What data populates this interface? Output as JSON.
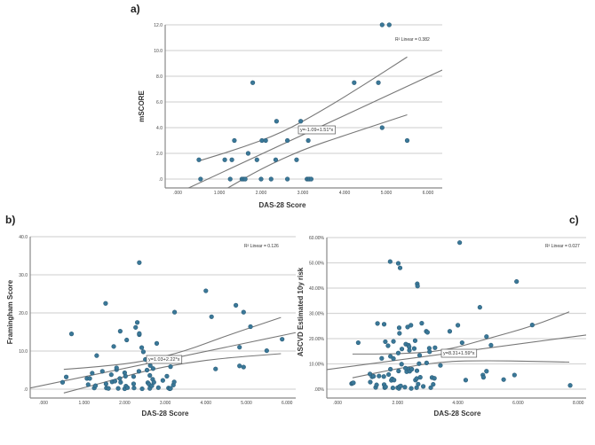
{
  "chart_data": [
    {
      "id": "a",
      "panel_label": "a)",
      "type": "scatter",
      "xlabel": "DAS-28 Score",
      "ylabel": "mSCORE",
      "xlim": [
        -0.2,
        6.3
      ],
      "ylim": [
        -0.7,
        12.0
      ],
      "xticks": [
        0,
        1,
        2,
        3,
        4,
        5,
        6
      ],
      "xtick_labels": [
        ".000",
        "1.000",
        "2.000",
        "3.000",
        "4.000",
        "5.000",
        "6.000"
      ],
      "yticks": [
        0,
        2,
        4,
        6,
        8,
        10,
        12
      ],
      "ytick_labels": [
        ".0",
        "2.0",
        "4.0",
        "6.0",
        "8.0",
        "10.0",
        "12.0"
      ],
      "grid": true,
      "r2_label": "R² Linear = 0.382",
      "equation_label": "y=-1.09+1.51*x",
      "fit": {
        "intercept": -1.09,
        "slope": 1.51
      },
      "ci_upper": [
        [
          0.5,
          1.4
        ],
        [
          1.5,
          2.4
        ],
        [
          2.5,
          3.6
        ],
        [
          3.5,
          5.4
        ],
        [
          4.5,
          7.4
        ],
        [
          5.5,
          9.5
        ]
      ],
      "ci_lower": [
        [
          1.2,
          -0.7
        ],
        [
          2.0,
          0.8
        ],
        [
          3.0,
          2.3
        ],
        [
          4.0,
          3.4
        ],
        [
          5.5,
          5.0
        ]
      ],
      "points": [
        [
          0.51,
          1.5
        ],
        [
          0.55,
          0
        ],
        [
          1.13,
          1.5
        ],
        [
          1.26,
          0
        ],
        [
          1.3,
          1.5
        ],
        [
          1.36,
          3.0
        ],
        [
          1.54,
          0
        ],
        [
          1.58,
          0
        ],
        [
          1.62,
          0
        ],
        [
          1.69,
          2.0
        ],
        [
          1.8,
          7.5
        ],
        [
          1.9,
          1.5
        ],
        [
          2.0,
          0
        ],
        [
          2.02,
          3.0
        ],
        [
          2.11,
          3.0
        ],
        [
          2.24,
          0
        ],
        [
          2.35,
          1.5
        ],
        [
          2.37,
          4.5
        ],
        [
          2.63,
          3.0
        ],
        [
          2.63,
          0
        ],
        [
          2.85,
          1.5
        ],
        [
          2.95,
          4.5
        ],
        [
          3.1,
          0
        ],
        [
          3.13,
          0
        ],
        [
          3.16,
          0
        ],
        [
          3.2,
          0
        ],
        [
          3.13,
          3.0
        ],
        [
          4.23,
          7.5
        ],
        [
          4.81,
          7.5
        ],
        [
          4.9,
          12.0
        ],
        [
          5.07,
          12.0
        ],
        [
          4.9,
          4.0
        ],
        [
          5.5,
          3.0
        ]
      ]
    },
    {
      "id": "b",
      "panel_label": "b)",
      "type": "scatter",
      "xlabel": "DAS-28 Score",
      "ylabel": "Framingham Score",
      "xlim": [
        -0.3,
        6.2
      ],
      "ylim": [
        -2.0,
        40.0
      ],
      "xticks": [
        0,
        1,
        2,
        3,
        4,
        5,
        6
      ],
      "xtick_labels": [
        ".000",
        "1.000",
        "2.000",
        "3.000",
        "4.000",
        "5.000",
        "6.000"
      ],
      "yticks": [
        0,
        10,
        20,
        30,
        40
      ],
      "ytick_labels": [
        ".0",
        "10.0",
        "20.0",
        "30.0",
        "40.0"
      ],
      "grid": true,
      "r2_label": "R² Linear = 0.126",
      "equation_label": "y=1.03+2.22*x",
      "fit": {
        "intercept": 1.03,
        "slope": 2.22
      },
      "ci_upper": [
        [
          0.5,
          5.2
        ],
        [
          1.5,
          6.0
        ],
        [
          2.5,
          7.3
        ],
        [
          3.5,
          10.0
        ],
        [
          4.5,
          14.0
        ],
        [
          5.85,
          18.8
        ]
      ],
      "ci_lower": [
        [
          0.5,
          -1.0
        ],
        [
          1.5,
          1.8
        ],
        [
          2.5,
          4.8
        ],
        [
          3.5,
          6.9
        ],
        [
          4.5,
          8.2
        ],
        [
          5.85,
          9.3
        ]
      ],
      "points": [
        [
          0.47,
          1.8
        ],
        [
          0.56,
          3.2
        ],
        [
          0.69,
          14.5
        ],
        [
          1.07,
          2.8
        ],
        [
          1.1,
          1.2
        ],
        [
          1.14,
          2.8
        ],
        [
          1.2,
          4.2
        ],
        [
          1.25,
          0.3
        ],
        [
          1.28,
          0.9
        ],
        [
          1.31,
          8.8
        ],
        [
          1.45,
          4.7
        ],
        [
          1.53,
          22.5
        ],
        [
          1.54,
          1.4
        ],
        [
          1.55,
          0.3
        ],
        [
          1.6,
          0.2
        ],
        [
          1.67,
          3.8
        ],
        [
          1.69,
          1.9
        ],
        [
          1.73,
          11.2
        ],
        [
          1.76,
          2.1
        ],
        [
          1.8,
          5.1
        ],
        [
          1.8,
          5.6
        ],
        [
          1.84,
          0.2
        ],
        [
          1.88,
          2.8
        ],
        [
          1.89,
          15.2
        ],
        [
          1.9,
          1.8
        ],
        [
          2.0,
          0.1
        ],
        [
          2.0,
          4.3
        ],
        [
          2.02,
          3.4
        ],
        [
          2.03,
          0.8
        ],
        [
          2.05,
          12.9
        ],
        [
          2.07,
          0.4
        ],
        [
          2.22,
          3.3
        ],
        [
          2.22,
          1.4
        ],
        [
          2.23,
          0.3
        ],
        [
          2.27,
          16.2
        ],
        [
          2.31,
          17.5
        ],
        [
          2.35,
          4.7
        ],
        [
          2.36,
          14.3
        ],
        [
          2.36,
          14.6
        ],
        [
          2.36,
          33.2
        ],
        [
          2.42,
          10.9
        ],
        [
          2.43,
          0.1
        ],
        [
          2.46,
          9.8
        ],
        [
          2.51,
          7.8
        ],
        [
          2.55,
          5.0
        ],
        [
          2.57,
          1.7
        ],
        [
          2.6,
          1.3
        ],
        [
          2.62,
          3.6
        ],
        [
          2.62,
          0.2
        ],
        [
          2.63,
          6.2
        ],
        [
          2.67,
          0.9
        ],
        [
          2.69,
          2.6
        ],
        [
          2.7,
          5.4
        ],
        [
          2.72,
          1.8
        ],
        [
          2.79,
          12.0
        ],
        [
          2.83,
          0.4
        ],
        [
          2.94,
          2.3
        ],
        [
          3.04,
          3.4
        ],
        [
          3.08,
          0.3
        ],
        [
          3.11,
          0.1
        ],
        [
          3.13,
          5.9
        ],
        [
          3.13,
          0.2
        ],
        [
          3.2,
          1.1
        ],
        [
          3.22,
          1.9
        ],
        [
          3.23,
          20.2
        ],
        [
          4.0,
          25.8
        ],
        [
          4.14,
          19.0
        ],
        [
          4.24,
          5.3
        ],
        [
          4.74,
          22.0
        ],
        [
          4.83,
          11.0
        ],
        [
          4.83,
          6.1
        ],
        [
          4.93,
          20.2
        ],
        [
          4.93,
          5.8
        ],
        [
          5.1,
          16.4
        ],
        [
          5.5,
          10.1
        ],
        [
          5.88,
          13.1
        ]
      ]
    },
    {
      "id": "c",
      "panel_label": "c)",
      "type": "scatter",
      "xlabel": "DAS-28 Score",
      "ylabel": "ASCVD Estimated 10y risk",
      "xlim": [
        -0.3,
        8.2
      ],
      "ylim": [
        -3.0,
        60.0
      ],
      "xticks": [
        0,
        2,
        4,
        6,
        8
      ],
      "xtick_labels": [
        ".000",
        "2.000",
        "4.000",
        "6.000",
        "8.000"
      ],
      "yticks": [
        0,
        10,
        20,
        30,
        40,
        50,
        60
      ],
      "ytick_labels": [
        ".00%",
        "10.00%",
        "20.00%",
        "30.00%",
        "40.00%",
        "50.00%",
        "60.00%"
      ],
      "grid": true,
      "r2_label": "R² Linear = 0.027",
      "equation_label": "y=8.31+1.59*x",
      "fit": {
        "intercept": 8.31,
        "slope": 1.59
      },
      "ci_upper": [
        [
          0.5,
          13.9
        ],
        [
          2.0,
          13.9
        ],
        [
          3.5,
          15.0
        ],
        [
          5.0,
          20.0
        ],
        [
          6.5,
          25.0
        ],
        [
          7.7,
          30.6
        ]
      ],
      "ci_lower": [
        [
          0.5,
          4.5
        ],
        [
          2.0,
          8.2
        ],
        [
          3.5,
          11.0
        ],
        [
          5.0,
          11.3
        ],
        [
          6.5,
          11.0
        ],
        [
          7.7,
          10.7
        ]
      ],
      "points": [
        [
          0.47,
          2.2
        ],
        [
          0.5,
          2.4
        ],
        [
          0.53,
          2.5
        ],
        [
          0.69,
          18.4
        ],
        [
          1.08,
          6.0
        ],
        [
          1.09,
          2.8
        ],
        [
          1.15,
          4.9
        ],
        [
          1.2,
          5.1
        ],
        [
          1.27,
          0.7
        ],
        [
          1.3,
          1.7
        ],
        [
          1.33,
          26.0
        ],
        [
          1.38,
          5.2
        ],
        [
          1.47,
          12.2
        ],
        [
          1.54,
          5.0
        ],
        [
          1.55,
          25.7
        ],
        [
          1.55,
          1.8
        ],
        [
          1.57,
          0.6
        ],
        [
          1.59,
          18.8
        ],
        [
          1.6,
          0.9
        ],
        [
          1.68,
          17.2
        ],
        [
          1.7,
          5.8
        ],
        [
          1.75,
          50.5
        ],
        [
          1.76,
          7.9
        ],
        [
          1.76,
          13.0
        ],
        [
          1.79,
          3.5
        ],
        [
          1.82,
          4.1
        ],
        [
          1.84,
          0.5
        ],
        [
          1.86,
          18.9
        ],
        [
          1.86,
          12.1
        ],
        [
          1.88,
          3.6
        ],
        [
          2.0,
          0.6
        ],
        [
          2.02,
          49.8
        ],
        [
          2.02,
          14.3
        ],
        [
          2.03,
          7.2
        ],
        [
          2.04,
          0.3
        ],
        [
          2.05,
          24.3
        ],
        [
          2.06,
          1.0
        ],
        [
          2.06,
          22.1
        ],
        [
          2.08,
          48.0
        ],
        [
          2.1,
          1.3
        ],
        [
          2.13,
          9.9
        ],
        [
          2.14,
          15.9
        ],
        [
          2.24,
          0.8
        ],
        [
          2.26,
          8.3
        ],
        [
          2.27,
          17.8
        ],
        [
          2.3,
          6.9
        ],
        [
          2.33,
          24.6
        ],
        [
          2.36,
          17.4
        ],
        [
          2.37,
          8.0
        ],
        [
          2.38,
          16.8
        ],
        [
          2.39,
          15.4
        ],
        [
          2.4,
          7.1
        ],
        [
          2.44,
          25.3
        ],
        [
          2.45,
          0.3
        ],
        [
          2.47,
          7.9
        ],
        [
          2.55,
          16.1
        ],
        [
          2.58,
          19.2
        ],
        [
          2.59,
          3.6
        ],
        [
          2.63,
          0.6
        ],
        [
          2.63,
          4.2
        ],
        [
          2.64,
          7.3
        ],
        [
          2.65,
          41.7
        ],
        [
          2.66,
          40.8
        ],
        [
          2.68,
          2.0
        ],
        [
          2.71,
          10.1
        ],
        [
          2.73,
          13.4
        ],
        [
          2.75,
          4.7
        ],
        [
          2.8,
          26.1
        ],
        [
          2.85,
          1.1
        ],
        [
          2.95,
          22.9
        ],
        [
          2.96,
          10.4
        ],
        [
          2.99,
          22.5
        ],
        [
          3.05,
          16.2
        ],
        [
          3.06,
          14.8
        ],
        [
          3.1,
          0.6
        ],
        [
          3.14,
          4.6
        ],
        [
          3.18,
          1.9
        ],
        [
          3.22,
          4.3
        ],
        [
          3.24,
          16.4
        ],
        [
          3.42,
          9.4
        ],
        [
          3.73,
          22.9
        ],
        [
          4.0,
          25.3
        ],
        [
          4.06,
          58.0
        ],
        [
          4.14,
          18.4
        ],
        [
          4.26,
          3.6
        ],
        [
          4.73,
          32.4
        ],
        [
          4.83,
          5.6
        ],
        [
          4.85,
          4.7
        ],
        [
          4.95,
          7.1
        ],
        [
          4.95,
          20.8
        ],
        [
          5.1,
          17.4
        ],
        [
          5.52,
          3.8
        ],
        [
          5.88,
          5.6
        ],
        [
          5.95,
          42.6
        ],
        [
          6.47,
          25.4
        ],
        [
          7.73,
          1.5
        ]
      ]
    }
  ]
}
